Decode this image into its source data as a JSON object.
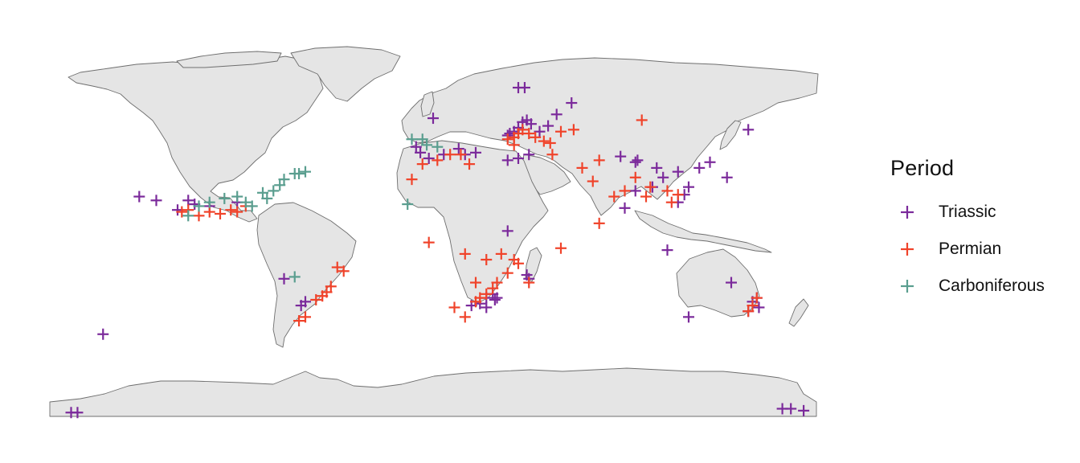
{
  "legend": {
    "title": "Period",
    "items": [
      {
        "label": "Triassic",
        "color": "#7b2a9b"
      },
      {
        "label": "Permian",
        "color": "#f0432a"
      },
      {
        "label": "Carboniferous",
        "color": "#5a9e8f"
      }
    ]
  },
  "map": {
    "projection": "equirectangular",
    "lon_range": [
      -180,
      180
    ],
    "lat_range": [
      -90,
      90
    ],
    "land_color": "#e5e5e5",
    "border_color": "#6e6e6e"
  },
  "chart_data": {
    "type": "scatter",
    "xlabel": "",
    "ylabel": "",
    "x_units": "longitude (degrees)",
    "y_units": "latitude (degrees)",
    "series": [
      {
        "name": "Triassic",
        "color": "#7b2a9b",
        "points": [
          [
            -138,
            25
          ],
          [
            -130,
            23
          ],
          [
            -120,
            18
          ],
          [
            -115,
            23
          ],
          [
            -112,
            21
          ],
          [
            -105,
            20
          ],
          [
            -92,
            22
          ],
          [
            -70,
            -18
          ],
          [
            -60,
            -30
          ],
          [
            -62,
            -32
          ],
          [
            -8,
            51
          ],
          [
            -2,
            45
          ],
          [
            5,
            47
          ],
          [
            12,
            50
          ],
          [
            15,
            47
          ],
          [
            20,
            48
          ],
          [
            35,
            57
          ],
          [
            36,
            58
          ],
          [
            38,
            59
          ],
          [
            40,
            61
          ],
          [
            42,
            64
          ],
          [
            44,
            65
          ],
          [
            46,
            63
          ],
          [
            50,
            59
          ],
          [
            54,
            62
          ],
          [
            58,
            68
          ],
          [
            65,
            74
          ],
          [
            40,
            82
          ],
          [
            43,
            82
          ],
          [
            -6,
            48
          ],
          [
            35,
            44
          ],
          [
            45,
            47
          ],
          [
            40,
            45
          ],
          [
            88,
            46
          ],
          [
            95,
            43
          ],
          [
            96,
            44
          ],
          [
            103,
            30
          ],
          [
            105,
            40
          ],
          [
            108,
            35
          ],
          [
            115,
            38
          ],
          [
            115,
            22
          ],
          [
            118,
            26
          ],
          [
            120,
            30
          ],
          [
            125,
            40
          ],
          [
            130,
            43
          ],
          [
            138,
            35
          ],
          [
            148,
            60
          ],
          [
            110,
            -3
          ],
          [
            90,
            19
          ],
          [
            95,
            28
          ],
          [
            -155,
            -47
          ],
          [
            140,
            -20
          ],
          [
            150,
            -30
          ],
          [
            153,
            -33
          ],
          [
            152,
            -28
          ],
          [
            148,
            -35
          ],
          [
            120,
            -38
          ],
          [
            22,
            -31
          ],
          [
            25,
            -28
          ],
          [
            28,
            -26
          ],
          [
            30,
            -28
          ],
          [
            18,
            -32
          ],
          [
            45,
            -18
          ],
          [
            44,
            -16
          ],
          [
            35,
            7
          ],
          [
            -170,
            -88
          ],
          [
            -167,
            -88
          ],
          [
            164,
            -86
          ],
          [
            168,
            -86
          ],
          [
            174,
            -87
          ],
          [
            0,
            66
          ],
          [
            25,
            -33
          ],
          [
            29,
            -29
          ]
        ]
      },
      {
        "name": "Permian",
        "color": "#f0432a",
        "points": [
          [
            -118,
            17
          ],
          [
            -115,
            18
          ],
          [
            -110,
            15
          ],
          [
            -105,
            17
          ],
          [
            -100,
            16
          ],
          [
            -95,
            18
          ],
          [
            -92,
            17
          ],
          [
            -88,
            20
          ],
          [
            -45,
            -12
          ],
          [
            -42,
            -14
          ],
          [
            -48,
            -22
          ],
          [
            -50,
            -25
          ],
          [
            -52,
            -27
          ],
          [
            -55,
            -29
          ],
          [
            -60,
            -38
          ],
          [
            -63,
            -40
          ],
          [
            -5,
            42
          ],
          [
            2,
            44
          ],
          [
            8,
            47
          ],
          [
            13,
            47
          ],
          [
            17,
            42
          ],
          [
            35,
            55
          ],
          [
            38,
            56
          ],
          [
            40,
            58
          ],
          [
            42,
            60
          ],
          [
            45,
            58
          ],
          [
            48,
            56
          ],
          [
            52,
            54
          ],
          [
            55,
            53
          ],
          [
            60,
            59
          ],
          [
            38,
            52
          ],
          [
            56,
            47
          ],
          [
            66,
            60
          ],
          [
            98,
            65
          ],
          [
            78,
            44
          ],
          [
            70,
            40
          ],
          [
            75,
            33
          ],
          [
            95,
            35
          ],
          [
            85,
            25
          ],
          [
            90,
            28
          ],
          [
            100,
            25
          ],
          [
            102,
            30
          ],
          [
            110,
            28
          ],
          [
            115,
            26
          ],
          [
            112,
            22
          ],
          [
            15,
            -38
          ],
          [
            20,
            -30
          ],
          [
            22,
            -28
          ],
          [
            25,
            -26
          ],
          [
            28,
            -23
          ],
          [
            30,
            -20
          ],
          [
            35,
            -15
          ],
          [
            40,
            -10
          ],
          [
            32,
            -5
          ],
          [
            38,
            -8
          ],
          [
            45,
            -20
          ],
          [
            15,
            -5
          ],
          [
            20,
            -20
          ],
          [
            25,
            -8
          ],
          [
            10,
            -33
          ],
          [
            152,
            -28
          ],
          [
            150,
            -32
          ],
          [
            148,
            -35
          ],
          [
            60,
            -2
          ],
          [
            78,
            11
          ],
          [
            -2,
            1
          ],
          [
            -10,
            34
          ]
        ]
      },
      {
        "name": "Carboniferous",
        "color": "#5a9e8f",
        "points": [
          [
            -110,
            20
          ],
          [
            -105,
            22
          ],
          [
            -98,
            24
          ],
          [
            -92,
            25
          ],
          [
            -88,
            22
          ],
          [
            -85,
            20
          ],
          [
            -80,
            27
          ],
          [
            -78,
            24
          ],
          [
            -75,
            28
          ],
          [
            -72,
            31
          ],
          [
            -70,
            34
          ],
          [
            -65,
            37
          ],
          [
            -63,
            37
          ],
          [
            -60,
            38
          ],
          [
            -115,
            15
          ],
          [
            -10,
            55
          ],
          [
            -5,
            55
          ],
          [
            -3,
            52
          ],
          [
            2,
            51
          ],
          [
            -12,
            21
          ],
          [
            -65,
            -17
          ]
        ]
      }
    ]
  }
}
